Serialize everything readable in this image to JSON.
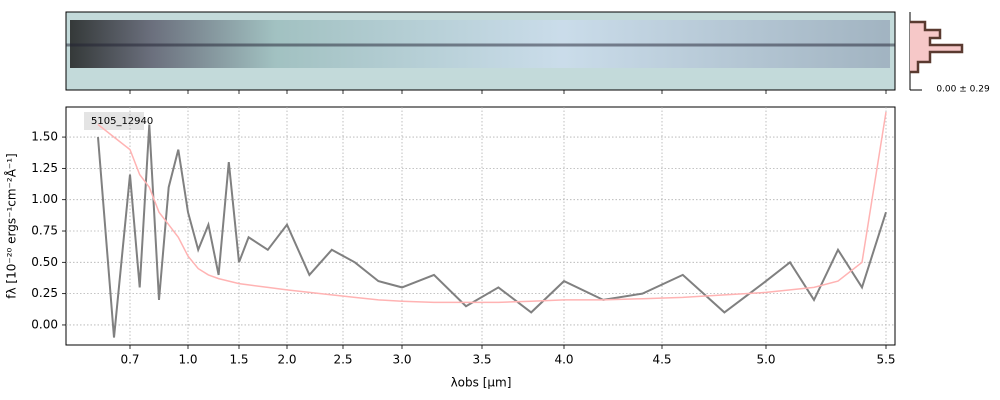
{
  "chart_data": {
    "type": "line",
    "annotation": "5105_12940",
    "hist_label": "0.00 ± 0.29",
    "xlabel": "λobs [μm]",
    "ylabel": "fλ [10⁻²⁰ ergs⁻¹cm⁻²Å⁻¹]",
    "x": [
      0.6,
      0.65,
      0.7,
      0.75,
      0.8,
      0.85,
      0.9,
      0.95,
      1.0,
      1.1,
      1.2,
      1.3,
      1.4,
      1.5,
      1.6,
      1.8,
      2.0,
      2.2,
      2.4,
      2.6,
      2.8,
      3.0,
      3.2,
      3.4,
      3.6,
      3.8,
      4.0,
      4.2,
      4.4,
      4.6,
      4.8,
      5.0,
      5.1,
      5.2,
      5.3,
      5.4,
      5.5
    ],
    "series": [
      {
        "color": "#808080",
        "values": [
          1.5,
          -0.1,
          1.2,
          0.3,
          1.6,
          0.2,
          1.1,
          1.4,
          0.9,
          0.6,
          0.8,
          0.4,
          1.3,
          0.5,
          0.7,
          0.6,
          0.8,
          0.4,
          0.6,
          0.5,
          0.35,
          0.3,
          0.4,
          0.15,
          0.3,
          0.1,
          0.35,
          0.2,
          0.25,
          0.4,
          0.1,
          0.35,
          0.5,
          0.2,
          0.6,
          0.3,
          0.9
        ]
      },
      {
        "color": "#ffb3b3",
        "values": [
          1.6,
          1.5,
          1.4,
          1.2,
          1.1,
          0.9,
          0.8,
          0.7,
          0.55,
          0.45,
          0.4,
          0.37,
          0.35,
          0.33,
          0.32,
          0.3,
          0.28,
          0.26,
          0.24,
          0.22,
          0.2,
          0.19,
          0.18,
          0.18,
          0.18,
          0.19,
          0.2,
          0.2,
          0.21,
          0.22,
          0.24,
          0.26,
          0.28,
          0.3,
          0.35,
          0.5,
          1.7
        ]
      }
    ],
    "xlim": [
      0.5,
      5.54
    ],
    "xticks": [
      0.7,
      {
        "value": 1,
        "label": "1.0"
      },
      1.5,
      {
        "value": 2,
        "label": "2.0"
      },
      2.5,
      {
        "value": 3,
        "label": "3.0"
      },
      3.5,
      {
        "value": 4,
        "label": "4.0"
      },
      4.5,
      {
        "value": 5,
        "label": "5.0"
      },
      5.5
    ],
    "ylim": [
      -0.16,
      1.74
    ],
    "yticks": [
      {
        "value": 0,
        "label": "0.00"
      },
      {
        "value": 0.25,
        "label": "0.25"
      },
      {
        "value": 0.5,
        "label": "0.50"
      },
      {
        "value": 0.75,
        "label": "0.75"
      },
      {
        "value": 1,
        "label": "1.00"
      },
      {
        "value": 1.25,
        "label": "1.25"
      },
      {
        "value": 1.5,
        "label": "1.50"
      }
    ],
    "grid": true
  }
}
